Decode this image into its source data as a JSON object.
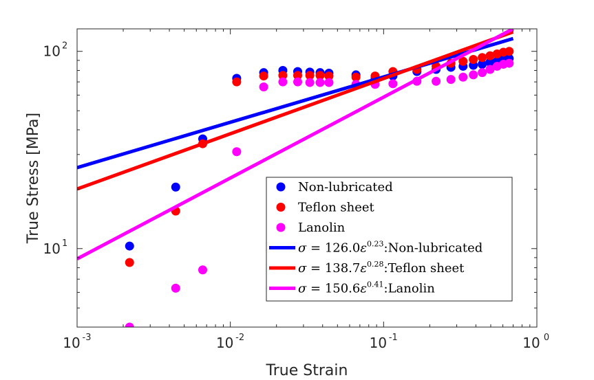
{
  "chart_data": {
    "type": "scatter",
    "title": "",
    "xlabel": "True Strain",
    "ylabel": "True Stress [MPa]",
    "x_scale": "log",
    "y_scale": "log",
    "xlim": [
      0.001,
      1
    ],
    "ylim": [
      4,
      130
    ],
    "grid": false,
    "legend_position": "lower-right",
    "x_ticks": [
      {
        "base": "10",
        "exp": "-3",
        "value": 0.001
      },
      {
        "base": "10",
        "exp": "-2",
        "value": 0.01
      },
      {
        "base": "10",
        "exp": "-1",
        "value": 0.1
      },
      {
        "base": "10",
        "exp": "0",
        "value": 1
      }
    ],
    "y_ticks": [
      {
        "base": "10",
        "exp": "1",
        "value": 10
      },
      {
        "base": "10",
        "exp": "2",
        "value": 100
      }
    ],
    "series": [
      {
        "name": "Non-lubricated",
        "color": "#0000ff",
        "kind": "scatter",
        "x": [
          0.0022,
          0.0044,
          0.0066,
          0.011,
          0.0165,
          0.022,
          0.0275,
          0.033,
          0.0385,
          0.044,
          0.066,
          0.088,
          0.115,
          0.165,
          0.22,
          0.275,
          0.33,
          0.385,
          0.44,
          0.495,
          0.55,
          0.605,
          0.66
        ],
        "y": [
          10.3,
          20.5,
          36,
          73,
          78,
          80,
          79,
          78.5,
          78,
          77.5,
          76,
          73,
          75,
          79,
          81,
          83,
          84,
          85,
          86,
          88,
          89,
          91,
          92
        ]
      },
      {
        "name": "Teflon sheet",
        "color": "#ff0000",
        "kind": "scatter",
        "x": [
          0.0022,
          0.0044,
          0.0066,
          0.011,
          0.0165,
          0.022,
          0.0275,
          0.033,
          0.0385,
          0.044,
          0.066,
          0.088,
          0.115,
          0.165,
          0.22,
          0.275,
          0.33,
          0.385,
          0.44,
          0.495,
          0.55,
          0.605,
          0.66
        ],
        "y": [
          8.5,
          15.5,
          34,
          70,
          75,
          75.5,
          75.5,
          75.5,
          75.5,
          75,
          74,
          75,
          79,
          81,
          84,
          87,
          89,
          91,
          93,
          95,
          97,
          99,
          100
        ]
      },
      {
        "name": "Lanolin",
        "color": "#ff00ff",
        "kind": "scatter",
        "x": [
          0.0022,
          0.0044,
          0.0066,
          0.011,
          0.0165,
          0.022,
          0.0275,
          0.033,
          0.0385,
          0.044,
          0.066,
          0.088,
          0.115,
          0.165,
          0.22,
          0.275,
          0.33,
          0.385,
          0.44,
          0.495,
          0.55,
          0.605,
          0.66
        ],
        "y": [
          4,
          6.3,
          7.8,
          31,
          66,
          70,
          70,
          69.5,
          69.5,
          69.5,
          68,
          68,
          68.5,
          70.5,
          70.5,
          72,
          74,
          76,
          78,
          81,
          84,
          86,
          87
        ]
      },
      {
        "name_parts": {
          "lhs": "σ",
          "eq": " = 126.0",
          "var": "ε",
          "exp": "0.23",
          "suffix": ":Non-lubricated"
        },
        "color": "#0000ff",
        "kind": "power_fit",
        "coef": 126.0,
        "exponent": 0.23,
        "x_range": [
          0.001,
          0.7
        ]
      },
      {
        "name_parts": {
          "lhs": "σ",
          "eq": " = 138.7",
          "var": "ε",
          "exp": "0.28",
          "suffix": ":Teflon sheet"
        },
        "color": "#ff0000",
        "kind": "power_fit",
        "coef": 138.7,
        "exponent": 0.28,
        "x_range": [
          0.001,
          0.7
        ]
      },
      {
        "name_parts": {
          "lhs": "σ",
          "eq": " = 150.6",
          "var": "ε",
          "exp": "0.41",
          "suffix": ":Lanolin"
        },
        "color": "#ff00ff",
        "kind": "power_fit",
        "coef": 150.6,
        "exponent": 0.41,
        "x_range": [
          0.001,
          0.7
        ]
      }
    ]
  }
}
